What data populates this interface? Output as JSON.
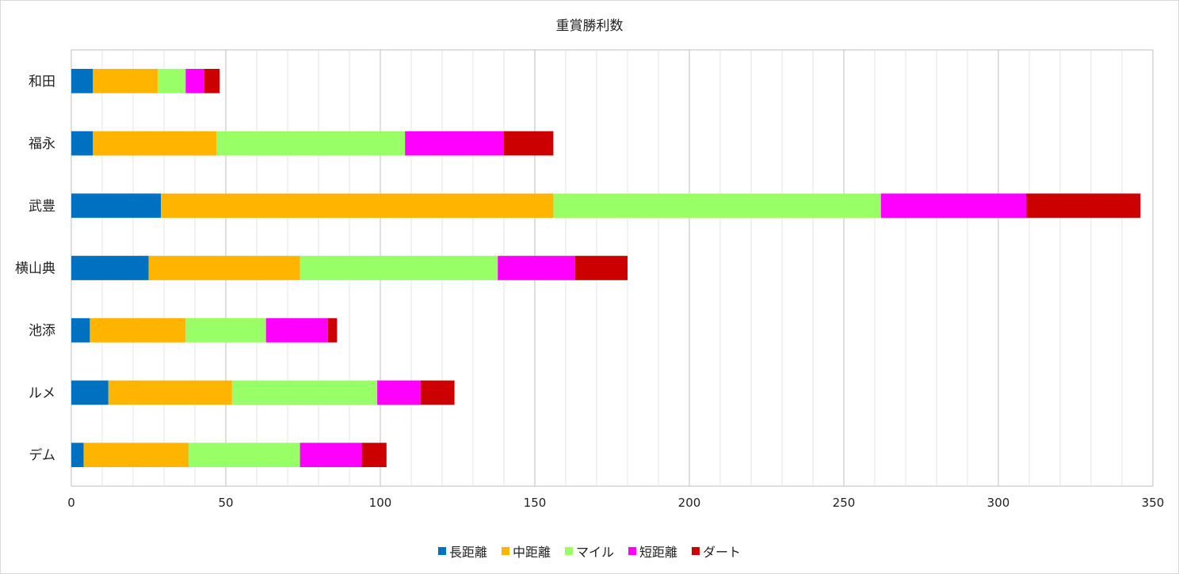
{
  "chart_data": {
    "type": "bar",
    "orientation": "horizontal",
    "stacked": true,
    "title": "重賞勝利数",
    "categories": [
      "和田",
      "福永",
      "武豊",
      "横山典",
      "池添",
      "ルメ",
      "デム"
    ],
    "series": [
      {
        "name": "長距離",
        "color": "#0070c0",
        "values": [
          7,
          7,
          29,
          25,
          6,
          12,
          4
        ]
      },
      {
        "name": "中距離",
        "color": "#ffb400",
        "values": [
          21,
          40,
          127,
          49,
          31,
          40,
          34
        ]
      },
      {
        "name": "マイル",
        "color": "#99ff66",
        "values": [
          9,
          61,
          106,
          64,
          26,
          47,
          36
        ]
      },
      {
        "name": "短距離",
        "color": "#ff00ff",
        "values": [
          6,
          32,
          47,
          25,
          20,
          14,
          20
        ]
      },
      {
        "name": "ダート",
        "color": "#cc0000",
        "values": [
          5,
          16,
          37,
          17,
          3,
          11,
          8
        ]
      }
    ],
    "xlim": [
      0,
      350
    ],
    "xticks": [
      0,
      50,
      100,
      150,
      200,
      250,
      300,
      350
    ],
    "grid": true,
    "legend_position": "bottom"
  }
}
